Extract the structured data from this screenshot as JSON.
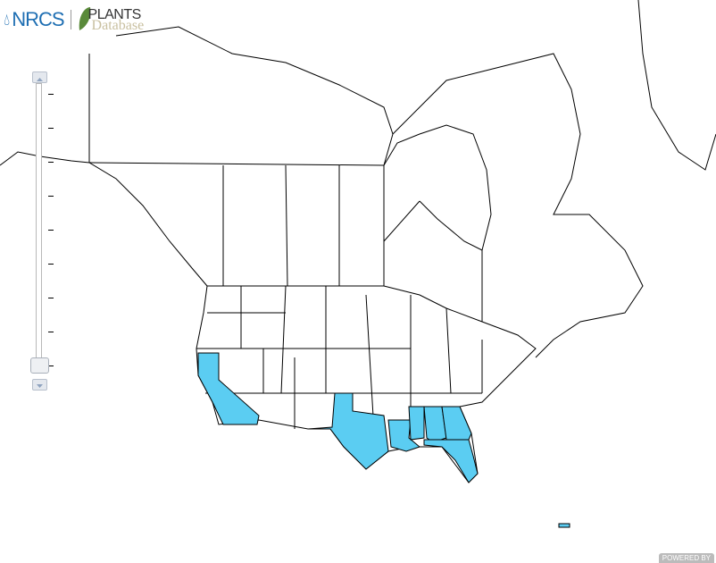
{
  "logo": {
    "agency": "NRCS",
    "product_line1": "PLANTS",
    "product_line2": "Database"
  },
  "zoom_control": {
    "levels": 9,
    "current_level": 0
  },
  "map": {
    "highlight_color": "#5bcdf2",
    "outline_color": "#000000",
    "highlighted_regions": [
      "California",
      "Texas",
      "Louisiana",
      "Mississippi",
      "Alabama",
      "Georgia",
      "Florida",
      "Puerto Rico"
    ]
  },
  "attribution": "POWERED BY"
}
